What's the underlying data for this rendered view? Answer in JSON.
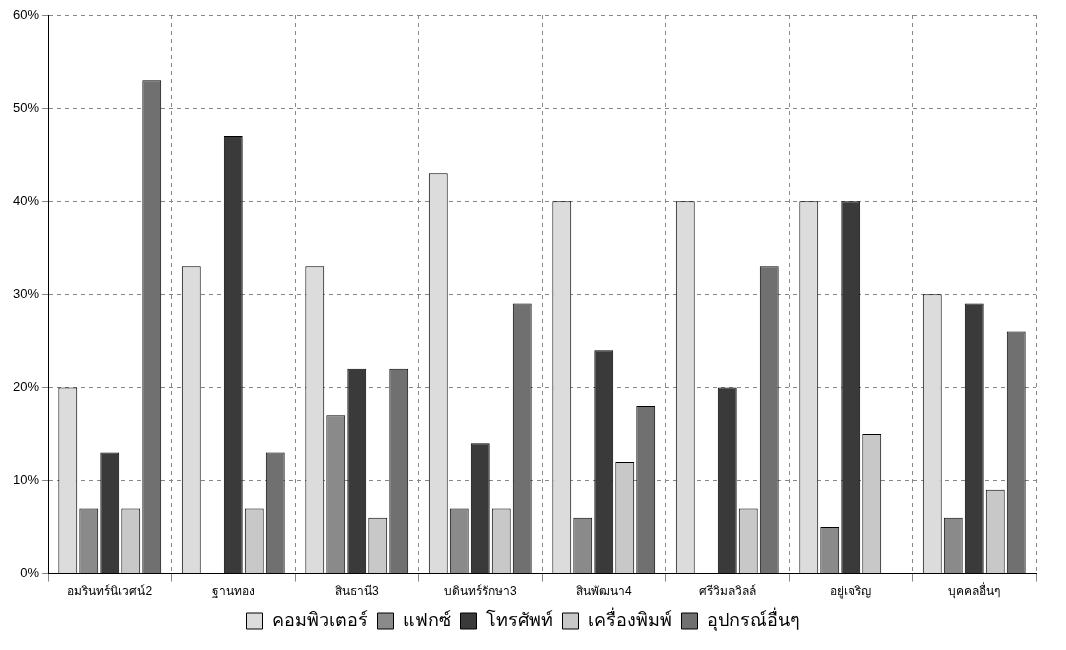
{
  "chart_data": {
    "type": "bar",
    "categories": [
      "อมรินทร์นิเวศน์2",
      "ฐานทอง",
      "สินธานี3",
      "บดินทร์รักษา3",
      "สินพัฒนา4",
      "ศรีวิมลวิลล์",
      "อยู่เจริญ",
      "บุคคลอื่นๆ"
    ],
    "series": [
      {
        "name": "คอมพิวเตอร์",
        "color": "#dcdcdc",
        "values": [
          20,
          33,
          33,
          43,
          40,
          40,
          40,
          30
        ]
      },
      {
        "name": "แฟกซ์",
        "color": "#8a8a8a",
        "values": [
          7,
          0,
          17,
          7,
          6,
          0,
          5,
          6
        ]
      },
      {
        "name": "โทรศัพท์",
        "color": "#3a3a3a",
        "values": [
          13,
          47,
          22,
          14,
          24,
          20,
          40,
          29
        ]
      },
      {
        "name": "เครื่องพิมพ์",
        "color": "#c8c8c8",
        "values": [
          7,
          7,
          6,
          7,
          12,
          7,
          15,
          9
        ]
      },
      {
        "name": "อุปกรณ์อื่นๆ",
        "color": "#707070",
        "values": [
          53,
          13,
          22,
          29,
          18,
          33,
          0,
          26
        ]
      }
    ],
    "ylim": [
      0,
      60
    ],
    "yticks": [
      {
        "value": 0,
        "label": "0%"
      },
      {
        "value": 10,
        "label": "10%"
      },
      {
        "value": 20,
        "label": "20%"
      },
      {
        "value": 30,
        "label": "30%"
      },
      {
        "value": 40,
        "label": "40%"
      },
      {
        "value": 50,
        "label": "50%"
      },
      {
        "value": 60,
        "label": "60%"
      }
    ],
    "grid": true,
    "legend": "bottom"
  }
}
